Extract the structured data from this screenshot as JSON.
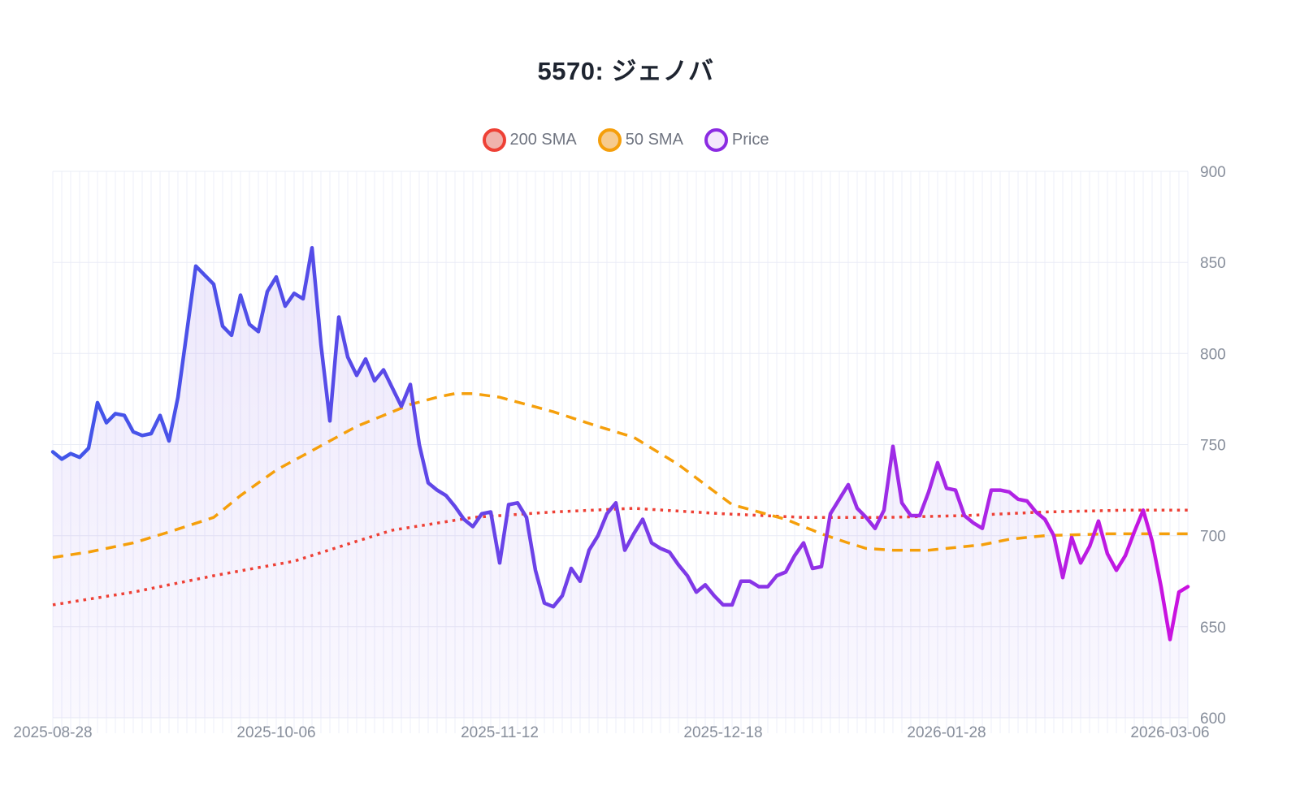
{
  "title": "5570: ジェノバ",
  "legend": {
    "items": [
      {
        "label": "200 SMA",
        "ring_color": "#ee4035",
        "fill_color": "#f0b2ac"
      },
      {
        "label": "50 SMA",
        "ring_color": "#f59f0b",
        "fill_color": "#f6cb8e"
      },
      {
        "label": "Price",
        "ring_color": "#8b2be2",
        "fill_color": "#f4e7fc"
      }
    ]
  },
  "chart_data": {
    "type": "line",
    "title": "5570: ジェノバ",
    "xlabel": "",
    "ylabel": "",
    "ylim": [
      600,
      900
    ],
    "y_ticks": [
      900,
      850,
      800,
      750,
      700,
      650,
      600
    ],
    "y_axis_side": "right",
    "grid": {
      "vertical": "one line per data point",
      "horizontal": "every 50 units"
    },
    "n_points": 128,
    "x_tick_labels": [
      {
        "index": 0,
        "label": "2025-08-28"
      },
      {
        "index": 25,
        "label": "2025-10-06"
      },
      {
        "index": 50,
        "label": "2025-11-12"
      },
      {
        "index": 75,
        "label": "2025-12-18"
      },
      {
        "index": 100,
        "label": "2026-01-28"
      },
      {
        "index": 125,
        "label": "2026-03-06"
      }
    ],
    "series": [
      {
        "name": "Price",
        "style": "solid line with area fill",
        "line_width": 4.5,
        "color_gradient_x": [
          "#4156e9",
          "#5b49e8",
          "#7d3ae7",
          "#a827e6",
          "#cb11e0"
        ],
        "area_fill_rgba_top": "rgba(118,74,230,0.14)",
        "area_fill_rgba_bottom": "rgba(118,74,230,0.04)",
        "values": [
          746,
          742,
          745,
          743,
          748,
          773,
          762,
          767,
          766,
          757,
          755,
          756,
          766,
          752,
          776,
          812,
          848,
          843,
          838,
          815,
          810,
          832,
          816,
          812,
          834,
          842,
          826,
          833,
          830,
          858,
          805,
          763,
          820,
          798,
          788,
          797,
          785,
          791,
          781,
          771,
          783,
          750,
          729,
          725,
          722,
          716,
          709,
          705,
          712,
          713,
          685,
          717,
          718,
          710,
          681,
          663,
          661,
          667,
          682,
          675,
          692,
          700,
          712,
          718,
          692,
          701,
          709,
          696,
          693,
          691,
          684,
          678,
          669,
          673,
          667,
          662,
          662,
          675,
          675,
          672,
          672,
          678,
          680,
          689,
          696,
          682,
          683,
          712,
          720,
          728,
          715,
          710,
          704,
          714,
          749,
          718,
          711,
          711,
          724,
          740,
          726,
          725,
          711,
          707,
          704,
          725,
          725,
          724,
          720,
          719,
          713,
          709,
          700,
          677,
          699,
          685,
          694,
          708,
          690,
          681,
          689,
          702,
          714,
          697,
          672,
          643,
          669,
          672
        ]
      },
      {
        "name": "50 SMA",
        "style": "dashed",
        "color": "#f59f0b",
        "line_width": 3.5,
        "dash": [
          13,
          9
        ],
        "keypoints": [
          [
            0,
            688
          ],
          [
            4,
            691
          ],
          [
            9,
            696
          ],
          [
            13,
            702
          ],
          [
            18,
            710
          ],
          [
            21,
            722
          ],
          [
            25,
            736
          ],
          [
            28,
            744
          ],
          [
            31,
            752
          ],
          [
            34,
            760
          ],
          [
            37,
            766
          ],
          [
            40,
            772
          ],
          [
            43,
            776
          ],
          [
            45,
            778
          ],
          [
            47,
            778
          ],
          [
            50,
            776
          ],
          [
            56,
            768
          ],
          [
            61,
            760
          ],
          [
            65,
            754
          ],
          [
            70,
            739
          ],
          [
            76,
            717
          ],
          [
            79,
            713
          ],
          [
            82,
            709
          ],
          [
            86,
            701
          ],
          [
            89,
            696
          ],
          [
            91,
            693
          ],
          [
            94,
            692
          ],
          [
            98,
            692
          ],
          [
            100,
            693
          ],
          [
            104,
            695
          ],
          [
            107,
            698
          ],
          [
            111,
            700
          ],
          [
            118,
            701
          ],
          [
            127,
            701
          ]
        ]
      },
      {
        "name": "200 SMA",
        "style": "dotted",
        "color": "#ee4035",
        "line_width": 3.5,
        "dash": [
          3.5,
          6
        ],
        "keypoints": [
          [
            0,
            662
          ],
          [
            9,
            669
          ],
          [
            18,
            678
          ],
          [
            27,
            686
          ],
          [
            36,
            700
          ],
          [
            38,
            703
          ],
          [
            47,
            710
          ],
          [
            56,
            713
          ],
          [
            65,
            715
          ],
          [
            75,
            712
          ],
          [
            84,
            710
          ],
          [
            93,
            710
          ],
          [
            102,
            711
          ],
          [
            111,
            713
          ],
          [
            120,
            714
          ],
          [
            127,
            714
          ]
        ]
      }
    ],
    "colors": {
      "grid_vertical": "#edeffa",
      "grid_horizontal": "#e9ecf5",
      "axis_label": "#878e9b",
      "title": "#1e2430",
      "background": "#ffffff"
    }
  }
}
